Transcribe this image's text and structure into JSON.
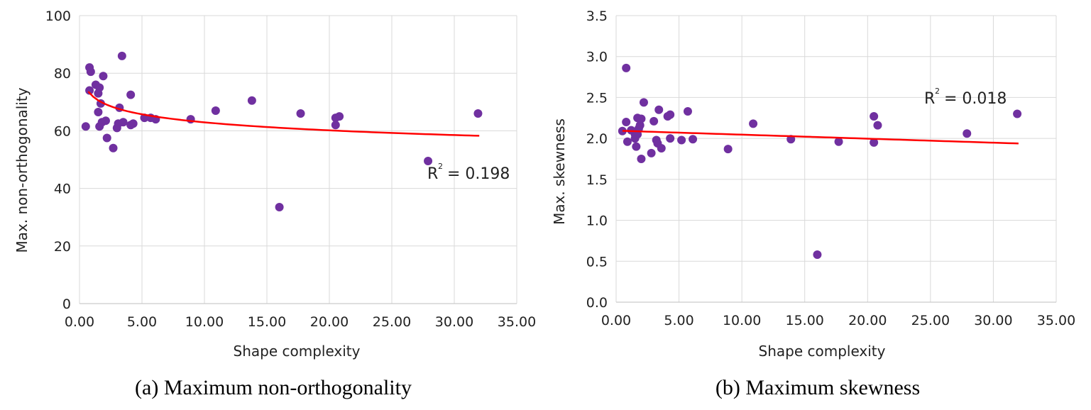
{
  "chart_data": [
    {
      "type": "scatter",
      "xlabel": "Shape complexity",
      "ylabel": "Max. non-orthogonality",
      "xlim": [
        0,
        35
      ],
      "ylim": [
        0,
        100
      ],
      "x_ticks": [
        "0.00",
        "5.00",
        "10.00",
        "15.00",
        "20.00",
        "25.00",
        "30.00",
        "35.00"
      ],
      "y_ticks": [
        "0",
        "20",
        "40",
        "60",
        "80",
        "100"
      ],
      "caption": "(a) Maximum non-orthogonality",
      "r2_label": "R",
      "r2_sup": "2",
      "r2_value": "= 0.198",
      "trend": {
        "type": "logarithmic",
        "a": 72.2,
        "b": -4.02,
        "x_start": 0.7,
        "x_end": 32.0,
        "color": "#ff0000"
      },
      "marker_color": "#7030a0",
      "points": [
        [
          0.5,
          61.5
        ],
        [
          0.8,
          82
        ],
        [
          0.9,
          80.5
        ],
        [
          0.8,
          74
        ],
        [
          1.3,
          76
        ],
        [
          1.5,
          73
        ],
        [
          1.6,
          75
        ],
        [
          1.5,
          66.5
        ],
        [
          1.7,
          69.5
        ],
        [
          1.6,
          61.5
        ],
        [
          1.9,
          79
        ],
        [
          1.8,
          63
        ],
        [
          2.1,
          63.5
        ],
        [
          2.2,
          57.5
        ],
        [
          2.7,
          54
        ],
        [
          3.0,
          61
        ],
        [
          3.1,
          62.5
        ],
        [
          3.2,
          68
        ],
        [
          3.4,
          86
        ],
        [
          3.5,
          63
        ],
        [
          4.1,
          72.5
        ],
        [
          4.1,
          62
        ],
        [
          4.3,
          62.5
        ],
        [
          5.2,
          64.5
        ],
        [
          5.7,
          64.5
        ],
        [
          6.1,
          64
        ],
        [
          8.9,
          64
        ],
        [
          10.9,
          67
        ],
        [
          13.8,
          70.5
        ],
        [
          16.0,
          33.5
        ],
        [
          17.7,
          66
        ],
        [
          20.5,
          62
        ],
        [
          20.5,
          64.5
        ],
        [
          20.8,
          65
        ],
        [
          27.9,
          49.5
        ],
        [
          31.9,
          66
        ]
      ]
    },
    {
      "type": "scatter",
      "xlabel": "Shape complexity",
      "ylabel": "Max. skewness",
      "xlim": [
        0,
        35
      ],
      "ylim": [
        0,
        3.5
      ],
      "x_ticks": [
        "0.00",
        "5.00",
        "10.00",
        "15.00",
        "20.00",
        "25.00",
        "30.00",
        "35.00"
      ],
      "y_ticks": [
        "0.0",
        "0.5",
        "1.0",
        "1.5",
        "2.0",
        "2.5",
        "3.0",
        "3.5"
      ],
      "caption": "(b) Maximum skewness",
      "r2_label": "R",
      "r2_sup": "2",
      "r2_value": "= 0.018",
      "trend": {
        "type": "linear",
        "m": -0.0049,
        "c": 2.095,
        "x_start": 0.5,
        "x_end": 32.0,
        "color": "#ff0000"
      },
      "marker_color": "#7030a0",
      "points": [
        [
          0.5,
          2.09
        ],
        [
          0.8,
          2.86
        ],
        [
          0.8,
          2.2
        ],
        [
          0.9,
          1.96
        ],
        [
          1.2,
          2.1
        ],
        [
          1.5,
          2.05
        ],
        [
          1.5,
          2.0
        ],
        [
          1.6,
          1.9
        ],
        [
          1.7,
          2.25
        ],
        [
          1.7,
          2.05
        ],
        [
          1.8,
          2.12
        ],
        [
          1.9,
          2.16
        ],
        [
          2.0,
          2.24
        ],
        [
          2.0,
          1.75
        ],
        [
          2.2,
          2.44
        ],
        [
          2.8,
          1.82
        ],
        [
          3.0,
          2.21
        ],
        [
          3.2,
          1.98
        ],
        [
          3.3,
          1.94
        ],
        [
          3.4,
          2.35
        ],
        [
          3.6,
          1.88
        ],
        [
          4.1,
          2.27
        ],
        [
          4.3,
          2.29
        ],
        [
          4.3,
          2.0
        ],
        [
          5.2,
          1.98
        ],
        [
          5.7,
          2.33
        ],
        [
          6.1,
          1.99
        ],
        [
          8.9,
          1.87
        ],
        [
          10.9,
          2.18
        ],
        [
          13.9,
          1.99
        ],
        [
          16.0,
          0.58
        ],
        [
          17.7,
          1.96
        ],
        [
          20.5,
          2.27
        ],
        [
          20.5,
          1.95
        ],
        [
          20.8,
          2.16
        ],
        [
          27.9,
          2.06
        ],
        [
          31.9,
          2.3
        ]
      ]
    }
  ]
}
